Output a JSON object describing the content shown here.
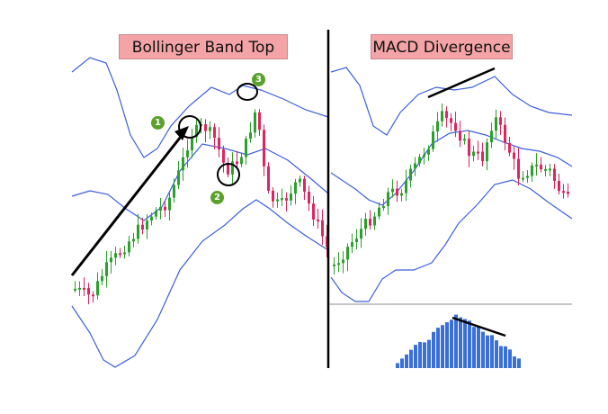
{
  "labels": {
    "left_title": "Bollinger Band Top",
    "right_title": "MACD Divergence"
  },
  "markers": [
    "1",
    "2",
    "3"
  ],
  "colors": {
    "bullish": "#2ca02c",
    "bearish": "#e0245e",
    "band": "#3b5fd9",
    "histogram": "#3a6fd8",
    "label_bg": "#f4a3a6",
    "marker": "#5aa02c",
    "annotation": "#000000"
  },
  "chart_data": [
    {
      "type": "candlestick",
      "title": "Bollinger Band Top",
      "xlabel": "",
      "ylabel": "",
      "overlays": [
        "upper band",
        "middle band",
        "lower band"
      ],
      "annotations": [
        "trend arrow",
        "circle 1 at band touch",
        "circle 2 at middle band",
        "circle 3 at band top"
      ],
      "grid": false
    },
    {
      "type": "candlestick",
      "title": "MACD Divergence",
      "xlabel": "",
      "ylabel": "",
      "overlays": [
        "upper band",
        "middle band",
        "lower band"
      ],
      "annotations": [
        "rising line over price highs",
        "falling line over histogram highs"
      ],
      "grid": false,
      "subplot": {
        "type": "bar",
        "name": "MACD histogram",
        "trend": "rising then falling"
      }
    }
  ]
}
